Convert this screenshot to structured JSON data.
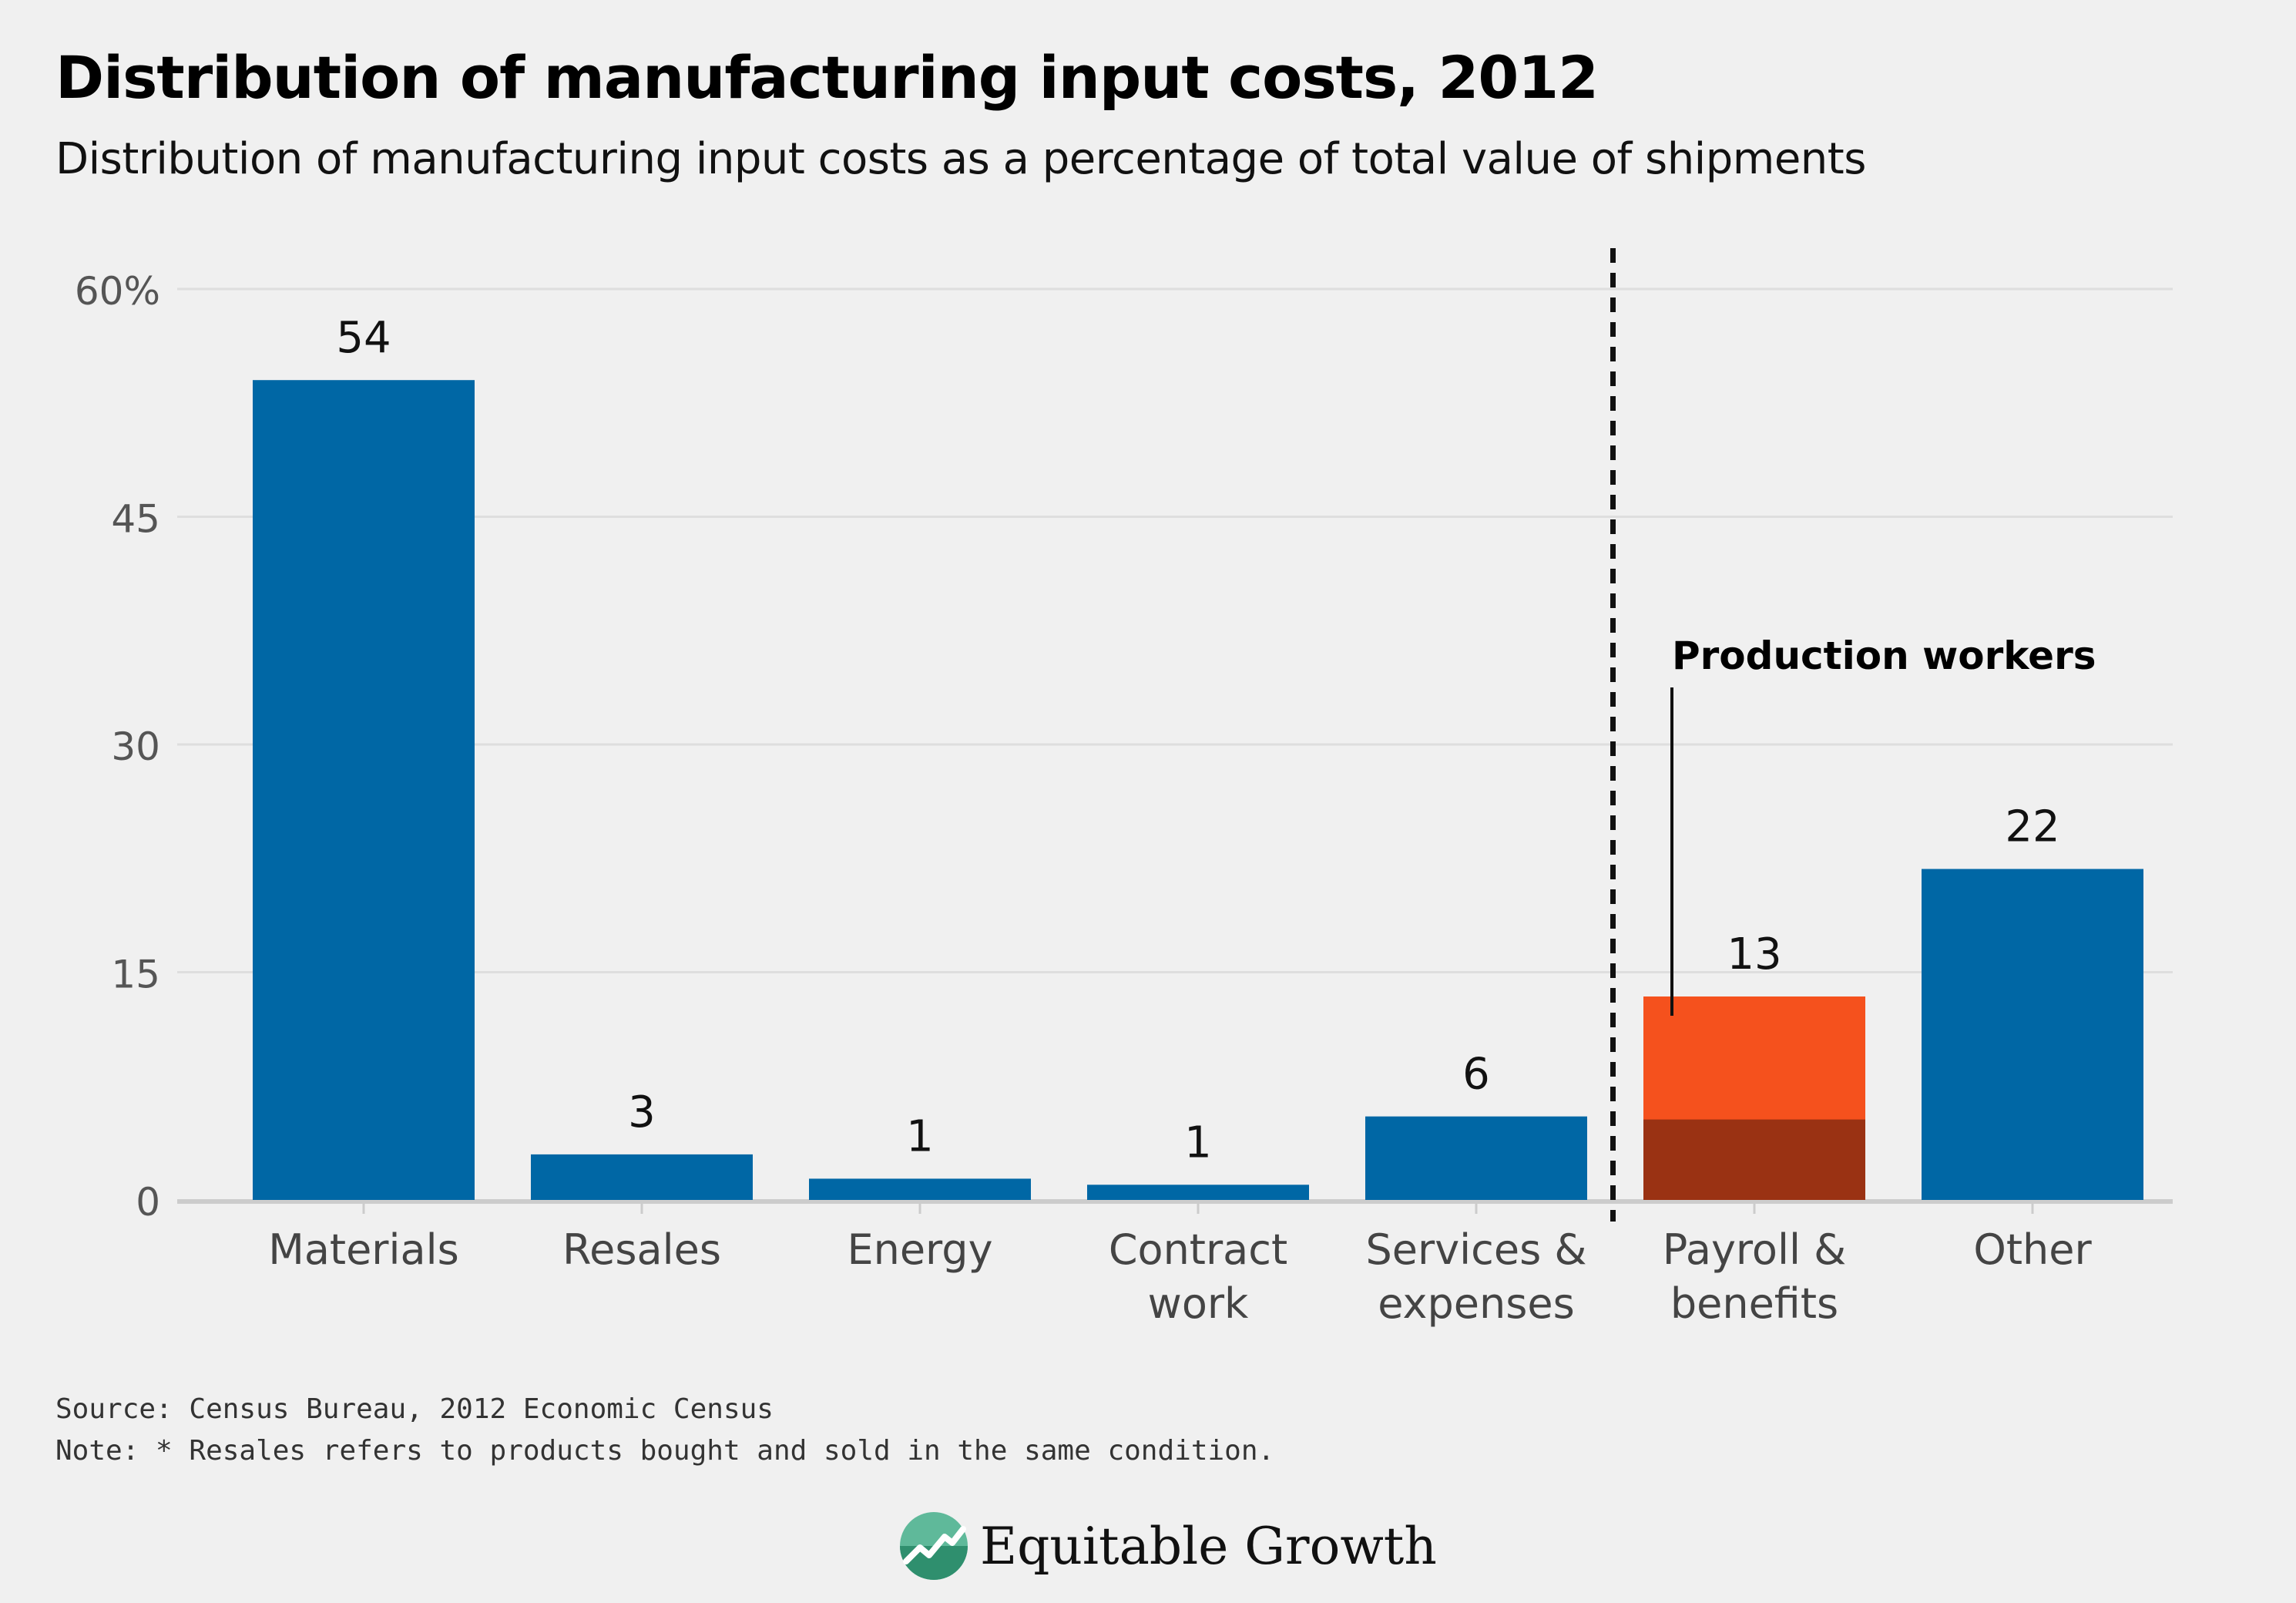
{
  "header": {
    "title": "Distribution of manufacturing input costs, 2012",
    "subtitle": "Distribution of manufacturing input costs as a percentage of total value of shipments"
  },
  "chart_data": {
    "type": "bar",
    "categories": [
      [
        "Materials"
      ],
      [
        "Resales"
      ],
      [
        "Energy"
      ],
      [
        "Contract",
        "work"
      ],
      [
        "Services &",
        "expenses"
      ],
      [
        "Payroll &",
        "benefits"
      ],
      [
        "Other"
      ]
    ],
    "values": [
      54,
      3,
      1.4,
      1,
      5.5,
      13.4,
      21.8
    ],
    "value_labels": [
      "54",
      "3",
      "1",
      "1",
      "6",
      "13",
      "22"
    ],
    "stacked_segment": {
      "category_index": 5,
      "name": "Production workers",
      "value": 5.3
    },
    "y_ticks": [
      0,
      15,
      30,
      45,
      60
    ],
    "y_tick_labels": [
      "0",
      "15",
      "30",
      "45",
      "60%"
    ],
    "ylim": [
      0,
      60
    ],
    "divider_after_index": 4,
    "grid": true,
    "colors": {
      "bar": "#0067a5",
      "highlight": "#f5511d",
      "segment": "#9a3213",
      "grid": "#dedede",
      "axis": "#cccccc"
    }
  },
  "footer": {
    "source": "Source: Census Bureau, 2012 Economic Census",
    "note": "Note: * Resales refers to products bought and sold in the same condition.",
    "brand": "Equitable Growth",
    "brand_icon": "equitable-growth-logo-icon"
  }
}
